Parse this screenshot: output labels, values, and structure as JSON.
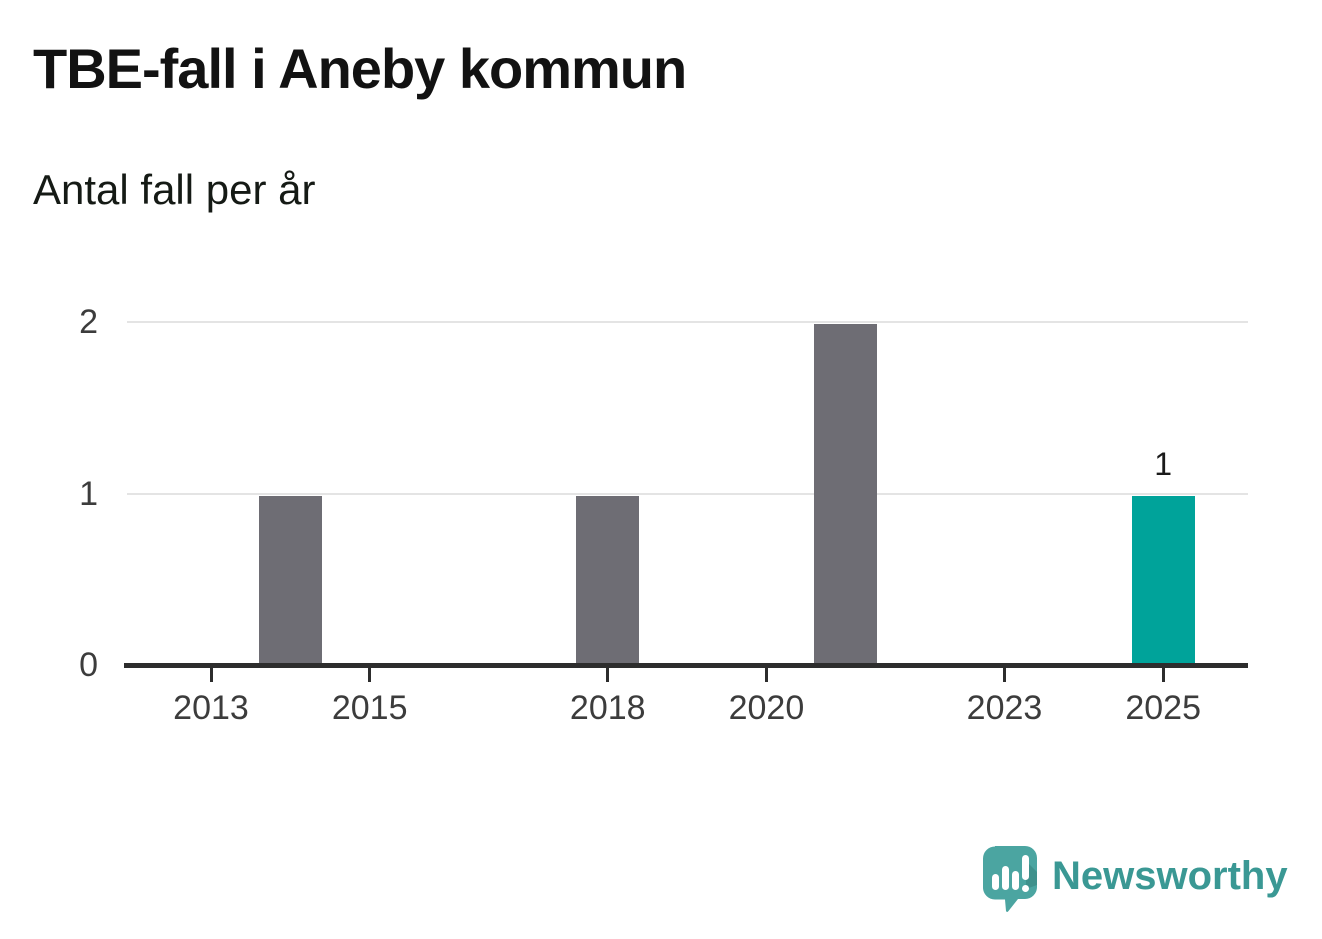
{
  "header": {
    "title": "TBE-fall i Aneby kommun",
    "subtitle": "Antal fall per år"
  },
  "chart_data": {
    "type": "bar",
    "title": "TBE-fall i Aneby kommun",
    "subtitle": "Antal fall per år",
    "categories": [
      2012,
      2013,
      2014,
      2015,
      2016,
      2017,
      2018,
      2019,
      2020,
      2021,
      2022,
      2023,
      2024,
      2025
    ],
    "values": [
      0,
      0,
      1,
      0,
      0,
      0,
      1,
      0,
      0,
      2,
      0,
      0,
      0,
      1
    ],
    "highlight_category": 2025,
    "value_label": {
      "category": 2025,
      "text": "1"
    },
    "xticks": [
      2013,
      2015,
      2018,
      2020,
      2023,
      2025
    ],
    "yticks": [
      0,
      1,
      2
    ],
    "ylim": [
      0,
      2
    ],
    "xlabel": "",
    "ylabel": "",
    "grid": "horizontal-only",
    "legend": "none"
  },
  "colors": {
    "bar_default": "#6e6d74",
    "bar_highlight": "#00a39a",
    "axis": "#2d2d2d",
    "gridline": "#e4e4e4",
    "title_text": "#121212",
    "tick_text": "#3c3c3c",
    "logo_bubble": "#4ba5a1",
    "logo_bubble_shade": "#3f918c",
    "logo_text": "#3a9894"
  },
  "branding": {
    "logo_text": "Newsworthy",
    "logo_icon": "newsworthy-speech-bubble-chart-icon"
  }
}
